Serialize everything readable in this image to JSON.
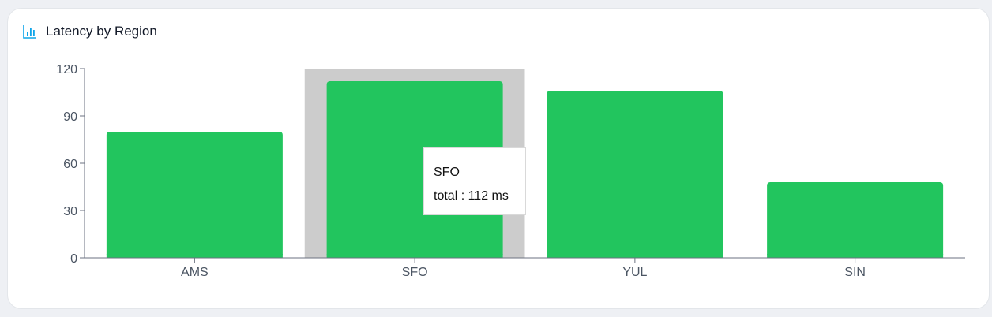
{
  "header": {
    "title": "Latency by Region",
    "icon": "bar-chart-icon"
  },
  "colors": {
    "bar": "#22c55e",
    "highlight": "#cccccc",
    "icon": "#0ea5e9",
    "axis": "#6b7280"
  },
  "tooltip": {
    "category": "SFO",
    "label": "total : 112 ms"
  },
  "chart_data": {
    "type": "bar",
    "categories": [
      "AMS",
      "SFO",
      "YUL",
      "SIN"
    ],
    "series": [
      {
        "name": "total",
        "values": [
          80,
          112,
          106,
          48
        ]
      }
    ],
    "unit": "ms",
    "ylim": [
      0,
      120
    ],
    "yticks": [
      0,
      30,
      60,
      90,
      120
    ],
    "highlighted_category": "SFO",
    "grid": false,
    "legend": "none"
  }
}
